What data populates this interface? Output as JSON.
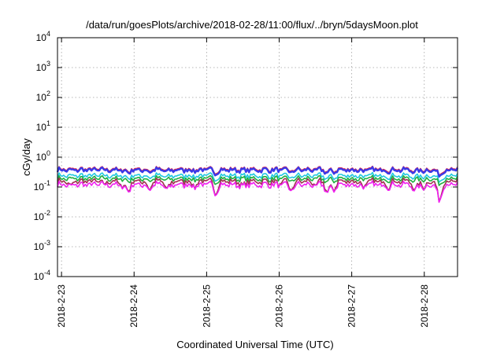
{
  "chart_data": {
    "type": "line",
    "title": "/data/run/goesPlots/archive/2018-02-28/11:00/flux/../bryn/5daysMoon.plot",
    "xlabel": "Coordinated Universal Time (UTC)",
    "ylabel": "cGy/day",
    "y_scale": "log",
    "ylim": [
      0.0001,
      10000
    ],
    "y_ticks": [
      {
        "base": "10",
        "exp": "-4",
        "value": 0.0001
      },
      {
        "base": "10",
        "exp": "-3",
        "value": 0.001
      },
      {
        "base": "10",
        "exp": "-2",
        "value": 0.01
      },
      {
        "base": "10",
        "exp": "-1",
        "value": 0.1
      },
      {
        "base": "10",
        "exp": "0",
        "value": 1
      },
      {
        "base": "10",
        "exp": "1",
        "value": 10
      },
      {
        "base": "10",
        "exp": "2",
        "value": 100
      },
      {
        "base": "10",
        "exp": "3",
        "value": 1000
      },
      {
        "base": "10",
        "exp": "4",
        "value": 10000
      }
    ],
    "xlim": [
      "2018-02-22T22:40",
      "2018-02-28T11:00"
    ],
    "x_ticks": [
      "2018-2-23",
      "2018-2-24",
      "2018-2-25",
      "2018-2-26",
      "2018-2-27",
      "2018-2-28"
    ],
    "grid": true,
    "series": [
      {
        "color": "#e0204a",
        "level": 0.4
      },
      {
        "color": "#3a3ae8",
        "level": 0.37
      },
      {
        "color": "#20c8e0",
        "level": 0.24
      },
      {
        "color": "#20b040",
        "level": 0.19
      },
      {
        "color": "#a03050",
        "level": 0.155
      },
      {
        "color": "#f020f0",
        "level": 0.12
      }
    ],
    "dips": [
      {
        "time": "2018-02-23T03:00",
        "min": 0.1
      },
      {
        "time": "2018-02-23T14:00",
        "min": 0.12
      },
      {
        "time": "2018-02-23T20:00",
        "min": 0.1
      },
      {
        "time": "2018-02-23T22:00",
        "min": 0.07
      },
      {
        "time": "2018-02-24T05:00",
        "min": 0.08
      },
      {
        "time": "2018-02-24T11:00",
        "min": 0.075
      },
      {
        "time": "2018-02-24T20:00",
        "min": 0.1
      },
      {
        "time": "2018-02-25T03:00",
        "min": 0.06
      },
      {
        "time": "2018-02-25T12:00",
        "min": 0.1
      },
      {
        "time": "2018-02-26T00:00",
        "min": 0.11
      },
      {
        "time": "2018-02-26T04:00",
        "min": 0.07
      },
      {
        "time": "2018-02-26T12:00",
        "min": 0.1
      },
      {
        "time": "2018-02-26T16:00",
        "min": 0.06
      },
      {
        "time": "2018-02-26T18:00",
        "min": 0.08
      },
      {
        "time": "2018-02-27T04:00",
        "min": 0.09
      },
      {
        "time": "2018-02-27T12:00",
        "min": 0.1
      },
      {
        "time": "2018-02-27T21:00",
        "min": 0.07
      },
      {
        "time": "2018-02-28T00:00",
        "min": 0.09
      },
      {
        "time": "2018-02-28T05:00",
        "min": 0.03
      }
    ]
  }
}
